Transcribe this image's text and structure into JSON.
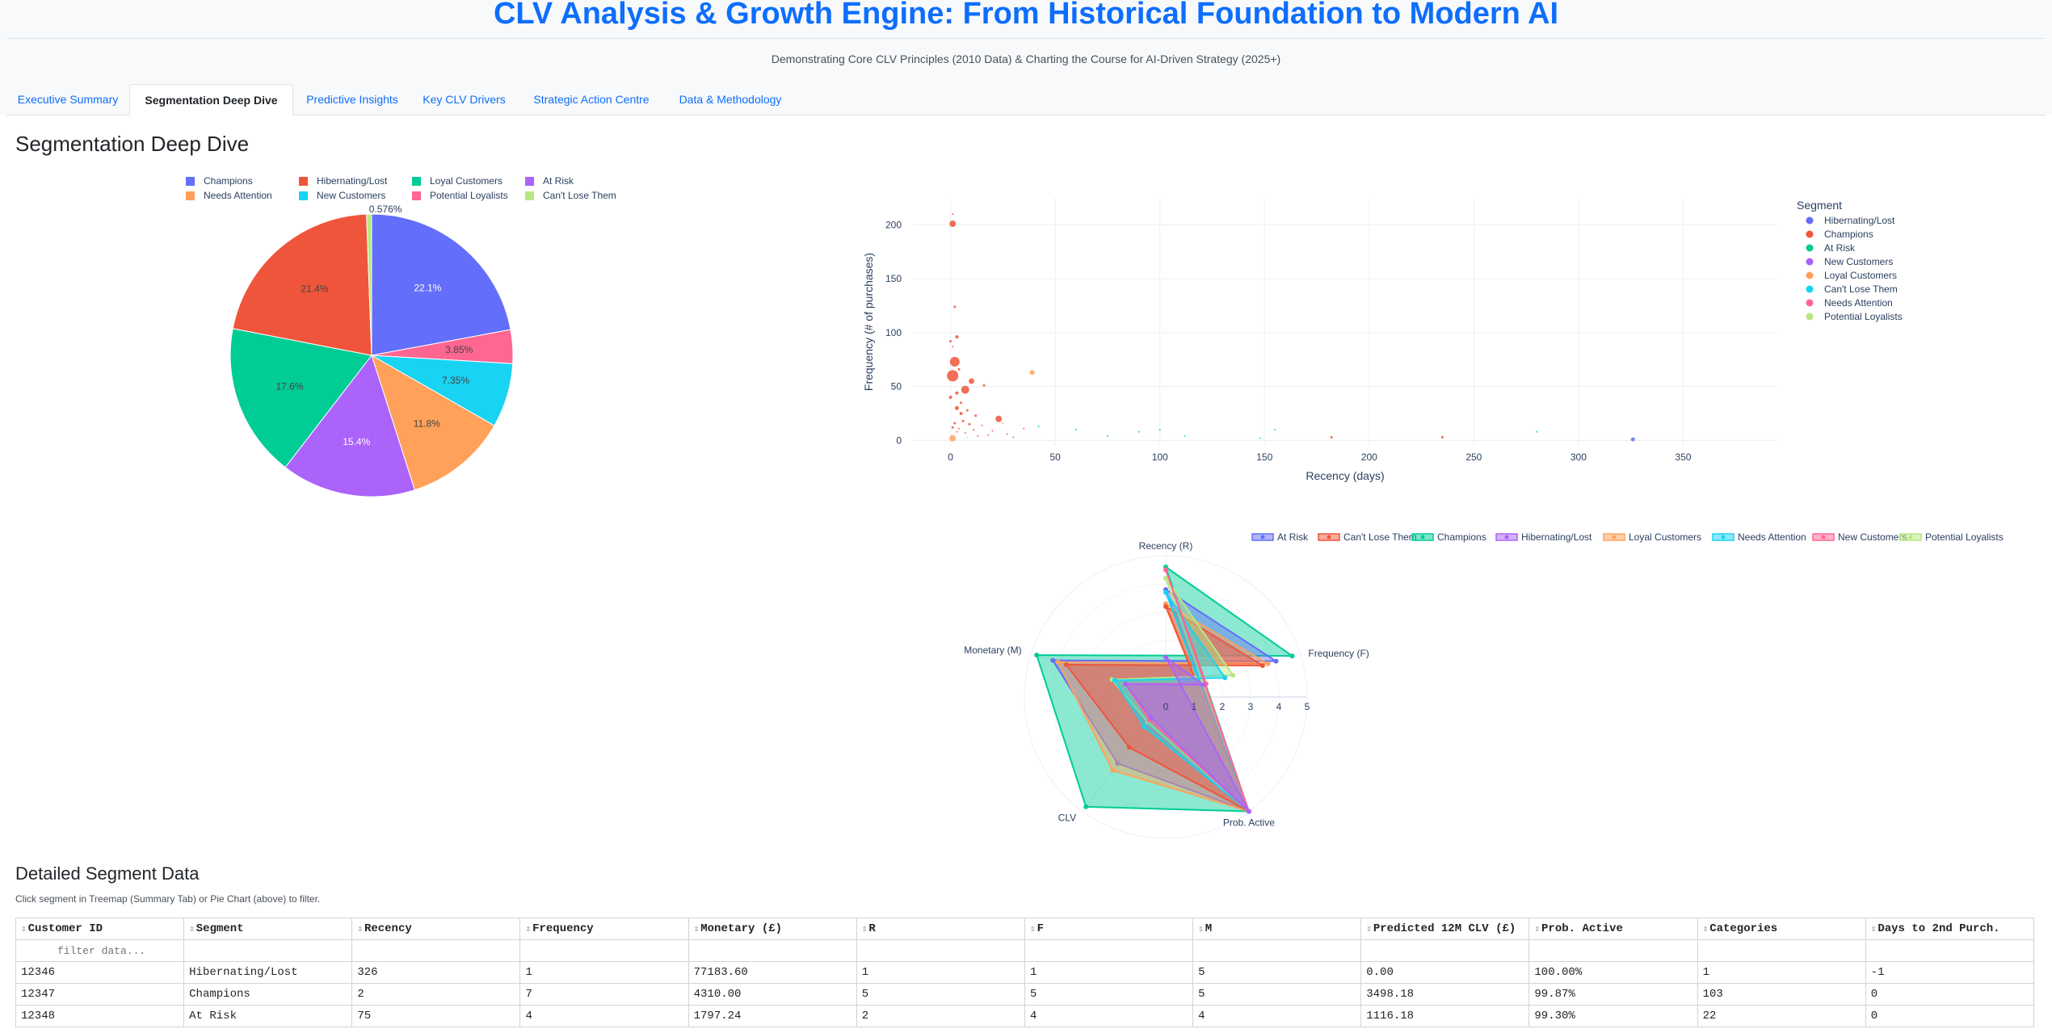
{
  "header": {
    "title": "CLV Analysis & Growth Engine: From Historical Foundation to Modern AI",
    "subtitle": "Demonstrating Core CLV Principles (2010 Data) & Charting the Course for AI-Driven Strategy (2025+)"
  },
  "tabs": [
    {
      "label": "Executive Summary",
      "active": false
    },
    {
      "label": "Segmentation Deep Dive",
      "active": true
    },
    {
      "label": "Predictive Insights",
      "active": false
    },
    {
      "label": "Key CLV Drivers",
      "active": false
    },
    {
      "label": "Strategic Action Centre",
      "active": false
    },
    {
      "label": "Data & Methodology",
      "active": false
    }
  ],
  "section_title": "Segmentation Deep Dive",
  "colors": {
    "Champions": "#636efa",
    "Hibernating/Lost": "#ef553b",
    "Loyal Customers": "#00cc96",
    "At Risk": "#ab63fa",
    "Needs Attention": "#ffa15a",
    "New Customers": "#19d3f3",
    "Potential Loyalists": "#ff6692",
    "Can't Lose Them": "#b6e880"
  },
  "chart_data": [
    {
      "type": "pie",
      "legend": [
        "Champions",
        "Hibernating/Lost",
        "Loyal Customers",
        "At Risk",
        "Needs Attention",
        "New Customers",
        "Potential Loyalists",
        "Can't Lose Them"
      ],
      "legend_placement": "top",
      "slices": [
        {
          "label": "Champions",
          "value": 22.1,
          "text": "22.1%"
        },
        {
          "label": "Potential Loyalists",
          "value": 3.85,
          "text": "3.85%"
        },
        {
          "label": "New Customers",
          "value": 7.35,
          "text": "7.35%"
        },
        {
          "label": "Needs Attention",
          "value": 11.8,
          "text": "11.8%"
        },
        {
          "label": "At Risk",
          "value": 15.4,
          "text": "15.4%"
        },
        {
          "label": "Loyal Customers",
          "value": 17.6,
          "text": "17.6%"
        },
        {
          "label": "Hibernating/Lost",
          "value": 21.4,
          "text": "21.4%"
        },
        {
          "label": "Can't Lose Them",
          "value": 0.576,
          "text": "0.576%"
        }
      ]
    },
    {
      "type": "scatter",
      "xlabel": "Recency (days)",
      "ylabel": "Frequency (# of purchases)",
      "xlim": [
        -18,
        395
      ],
      "ylim": [
        -5,
        225
      ],
      "xticks": [
        0,
        50,
        100,
        150,
        200,
        250,
        300,
        350
      ],
      "yticks": [
        0,
        50,
        100,
        150,
        200
      ],
      "grid": true,
      "legend_title": "Segment",
      "legend": [
        "Hibernating/Lost",
        "Champions",
        "At Risk",
        "New Customers",
        "Loyal Customers",
        "Can't Lose Them",
        "Needs Attention",
        "Potential Loyalists"
      ],
      "legend_placement": "right",
      "series_colors": {
        "Hibernating/Lost": "#636efa",
        "Champions": "#ef553b",
        "At Risk": "#00cc96",
        "New Customers": "#ab63fa",
        "Loyal Customers": "#ffa15a",
        "Can't Lose Them": "#19d3f3",
        "Needs Attention": "#ff6692",
        "Potential Loyalists": "#b6e880"
      },
      "points": [
        {
          "segment": "Champions",
          "x": 1,
          "y": 210,
          "size": 1
        },
        {
          "segment": "Champions",
          "x": 1,
          "y": 201,
          "size": 4
        },
        {
          "segment": "Champions",
          "x": 2,
          "y": 124,
          "size": 1.5
        },
        {
          "segment": "Champions",
          "x": 3,
          "y": 96,
          "size": 2
        },
        {
          "segment": "Champions",
          "x": 0,
          "y": 92,
          "size": 1.5
        },
        {
          "segment": "Champions",
          "x": 1,
          "y": 87,
          "size": 1
        },
        {
          "segment": "Champions",
          "x": 2,
          "y": 73,
          "size": 6
        },
        {
          "segment": "Champions",
          "x": 4,
          "y": 66,
          "size": 1.5
        },
        {
          "segment": "Champions",
          "x": 1,
          "y": 60,
          "size": 7
        },
        {
          "segment": "Champions",
          "x": 10,
          "y": 55,
          "size": 3.5
        },
        {
          "segment": "Champions",
          "x": 16,
          "y": 51,
          "size": 1.5
        },
        {
          "segment": "Champions",
          "x": 7,
          "y": 47,
          "size": 5
        },
        {
          "segment": "Champions",
          "x": 3,
          "y": 44,
          "size": 2
        },
        {
          "segment": "Champions",
          "x": 0,
          "y": 40,
          "size": 2
        },
        {
          "segment": "Champions",
          "x": 5,
          "y": 35,
          "size": 1.5
        },
        {
          "segment": "Champions",
          "x": 3,
          "y": 30,
          "size": 2.5
        },
        {
          "segment": "Champions",
          "x": 8,
          "y": 28,
          "size": 1.5
        },
        {
          "segment": "Champions",
          "x": 5,
          "y": 25,
          "size": 2
        },
        {
          "segment": "Champions",
          "x": 12,
          "y": 23,
          "size": 1.5
        },
        {
          "segment": "Champions",
          "x": 23,
          "y": 20,
          "size": 4
        },
        {
          "segment": "Champions",
          "x": 6,
          "y": 18,
          "size": 1.5
        },
        {
          "segment": "Champions",
          "x": 2,
          "y": 16,
          "size": 1.5
        },
        {
          "segment": "Champions",
          "x": 9,
          "y": 15,
          "size": 1.5
        },
        {
          "segment": "Champions",
          "x": 15,
          "y": 14,
          "size": 1
        },
        {
          "segment": "Champions",
          "x": 1,
          "y": 12,
          "size": 1.5
        },
        {
          "segment": "Champions",
          "x": 4,
          "y": 11,
          "size": 1
        },
        {
          "segment": "Champions",
          "x": 11,
          "y": 10,
          "size": 1
        },
        {
          "segment": "Champions",
          "x": 20,
          "y": 9,
          "size": 1
        },
        {
          "segment": "Champions",
          "x": 3,
          "y": 8,
          "size": 1
        },
        {
          "segment": "Champions",
          "x": 7,
          "y": 7,
          "size": 1
        },
        {
          "segment": "Champions",
          "x": 27,
          "y": 6,
          "size": 1
        },
        {
          "segment": "Champions",
          "x": 35,
          "y": 11,
          "size": 1
        },
        {
          "segment": "Champions",
          "x": 18,
          "y": 5,
          "size": 1
        },
        {
          "segment": "Champions",
          "x": 13,
          "y": 4,
          "size": 1
        },
        {
          "segment": "Champions",
          "x": 30,
          "y": 3,
          "size": 1
        },
        {
          "segment": "Champions",
          "x": 182,
          "y": 3,
          "size": 1.5
        },
        {
          "segment": "Champions",
          "x": 235,
          "y": 3,
          "size": 1.5
        },
        {
          "segment": "Loyal Customers",
          "x": 39,
          "y": 63,
          "size": 3
        },
        {
          "segment": "Loyal Customers",
          "x": 1,
          "y": 2,
          "size": 4
        },
        {
          "segment": "Loyal Customers",
          "x": 25,
          "y": 16,
          "size": 1
        },
        {
          "segment": "At Risk",
          "x": 42,
          "y": 13,
          "size": 1
        },
        {
          "segment": "At Risk",
          "x": 75,
          "y": 4,
          "size": 1
        },
        {
          "segment": "At Risk",
          "x": 90,
          "y": 8,
          "size": 1
        },
        {
          "segment": "At Risk",
          "x": 60,
          "y": 10,
          "size": 1
        },
        {
          "segment": "At Risk",
          "x": 155,
          "y": 10,
          "size": 1
        },
        {
          "segment": "At Risk",
          "x": 280,
          "y": 8,
          "size": 1
        },
        {
          "segment": "At Risk",
          "x": 100,
          "y": 10,
          "size": 1
        },
        {
          "segment": "Hibernating/Lost",
          "x": 326,
          "y": 1,
          "size": 2.5
        },
        {
          "segment": "Can't Lose Them",
          "x": 112,
          "y": 4,
          "size": 1
        },
        {
          "segment": "Can't Lose Them",
          "x": 148,
          "y": 2,
          "size": 1
        },
        {
          "segment": "Potential Loyalists",
          "x": 8,
          "y": 3,
          "size": 1
        }
      ]
    },
    {
      "type": "radar",
      "axes": [
        "Recency (R)",
        "Frequency (F)",
        "Monetary (M)",
        "CLV",
        "Prob. Active"
      ],
      "radial_ticks": [
        0,
        1,
        2,
        3,
        4,
        5
      ],
      "radial_range": [
        0,
        5
      ],
      "legend": [
        "At Risk",
        "Can't Lose Them",
        "Champions",
        "Hibernating/Lost",
        "Loyal Customers",
        "Needs Attention",
        "New Customers",
        "Potential Loyalists"
      ],
      "legend_placement": "top-right",
      "series": [
        {
          "name": "Champions",
          "color": "#00cc96",
          "values": [
            4.6,
            4.7,
            4.8,
            4.8,
            5.0
          ]
        },
        {
          "name": "At Risk",
          "color": "#636efa",
          "values": [
            3.8,
            4.1,
            4.2,
            2.9,
            5.0
          ]
        },
        {
          "name": "Loyal Customers",
          "color": "#ffa15a",
          "values": [
            3.3,
            3.8,
            4.0,
            3.2,
            5.0
          ]
        },
        {
          "name": "Can't Lose Them",
          "color": "#ef553b",
          "values": [
            3.2,
            3.6,
            3.7,
            2.2,
            5.0
          ]
        },
        {
          "name": "Potential Loyalists",
          "color": "#b6e880",
          "values": [
            4.2,
            2.5,
            2.0,
            1.1,
            5.0
          ]
        },
        {
          "name": "Needs Attention",
          "color": "#19d3f3",
          "values": [
            3.7,
            2.2,
            1.9,
            1.3,
            5.0
          ]
        },
        {
          "name": "New Customers",
          "color": "#ff6692",
          "values": [
            4.5,
            1.5,
            1.5,
            1.0,
            5.0
          ]
        },
        {
          "name": "Hibernating/Lost",
          "color": "#ab63fa",
          "values": [
            1.4,
            1.4,
            1.5,
            0.9,
            5.0
          ]
        }
      ]
    }
  ],
  "detail": {
    "title": "Detailed Segment Data",
    "hint": "Click segment in Treemap (Summary Tab) or Pie Chart (above) to filter.",
    "filter_placeholder": "filter data...",
    "sort_glyph": "⇕",
    "columns": [
      "Customer ID",
      "Segment",
      "Recency",
      "Frequency",
      "Monetary (£)",
      "R",
      "F",
      "M",
      "Predicted 12M CLV (£)",
      "Prob. Active",
      "Categories",
      "Days to 2nd Purch."
    ],
    "rows": [
      [
        "12346",
        "Hibernating/Lost",
        "326",
        "1",
        "77183.60",
        "1",
        "1",
        "5",
        "0.00",
        "100.00%",
        "1",
        "-1"
      ],
      [
        "12347",
        "Champions",
        "2",
        "7",
        "4310.00",
        "5",
        "5",
        "5",
        "3498.18",
        "99.87%",
        "103",
        "0"
      ],
      [
        "12348",
        "At Risk",
        "75",
        "4",
        "1797.24",
        "2",
        "4",
        "4",
        "1116.18",
        "99.30%",
        "22",
        "0"
      ]
    ]
  }
}
